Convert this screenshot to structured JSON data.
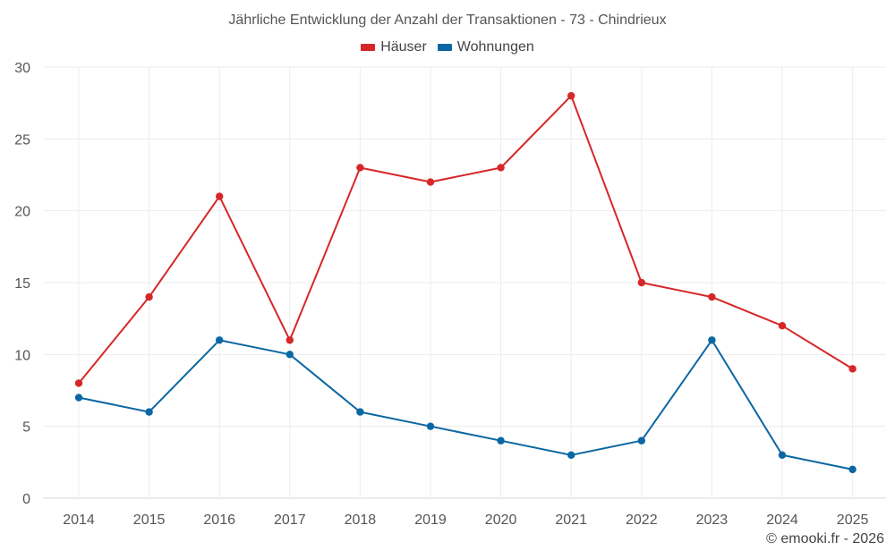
{
  "chart_data": {
    "type": "line",
    "title": "Jährliche Entwicklung der Anzahl der Transaktionen - 73 - Chindrieux",
    "categories": [
      "2014",
      "2015",
      "2016",
      "2017",
      "2018",
      "2019",
      "2020",
      "2021",
      "2022",
      "2023",
      "2024",
      "2025"
    ],
    "series": [
      {
        "name": "Häuser",
        "color": "#d62728",
        "values": [
          8,
          14,
          21,
          11,
          23,
          22,
          23,
          28,
          15,
          14,
          12,
          9
        ]
      },
      {
        "name": "Wohnungen",
        "color": "#0a67a3",
        "values": [
          7,
          6,
          11,
          10,
          6,
          5,
          4,
          3,
          4,
          11,
          3,
          2
        ]
      }
    ],
    "ylim": [
      0,
      30
    ],
    "yticks": [
      0,
      5,
      10,
      15,
      20,
      25,
      30
    ],
    "xlabel": "",
    "ylabel": "",
    "grid": true,
    "legend_position": "top-center"
  },
  "credit": "© emooki.fr - 2026"
}
